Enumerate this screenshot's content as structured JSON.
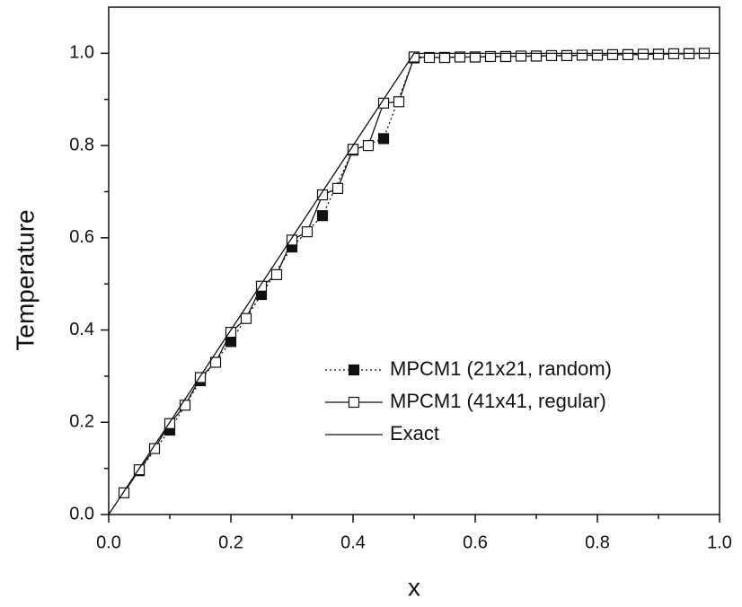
{
  "chart_data": {
    "type": "line",
    "xlabel": "x",
    "ylabel": "Temperature",
    "xlim": [
      0,
      1.0
    ],
    "ylim": [
      0,
      1.1
    ],
    "xticks": [
      {
        "value": 0,
        "label": "0.0"
      },
      0.2,
      0.4,
      0.6,
      0.8,
      {
        "value": 1.0,
        "label": "1.0"
      }
    ],
    "yticks": [
      {
        "value": 0,
        "label": "0.0"
      },
      0.2,
      0.4,
      0.6,
      0.8,
      {
        "value": 1.0,
        "label": "1.0"
      }
    ],
    "xminorticks": [
      0.1,
      0.3,
      0.5,
      0.7,
      0.9
    ],
    "yminorticks": [
      0.1,
      0.3,
      0.5,
      0.7,
      0.9
    ],
    "grid": false,
    "legend": "lower right",
    "series": [
      {
        "name": "MPCM1 (21x21, random)",
        "color": "#111111",
        "dash": "dotted",
        "marker": "square-filled",
        "x": [
          0.05,
          0.1,
          0.15,
          0.2,
          0.25,
          0.3,
          0.35,
          0.4,
          0.45,
          0.5,
          0.55,
          0.6,
          0.65,
          0.7,
          0.75,
          0.8,
          0.85,
          0.9,
          0.95
        ],
        "values": [
          0.095,
          0.183,
          0.29,
          0.375,
          0.477,
          0.58,
          0.648,
          0.79,
          0.815,
          0.99,
          0.991,
          0.992,
          0.993,
          0.994,
          0.995,
          0.996,
          0.997,
          0.998,
          0.999
        ]
      },
      {
        "name": "MPCM1 (41x41, regular)",
        "color": "#111111",
        "dash": "solid",
        "marker": "square-open",
        "x": [
          0.025,
          0.05,
          0.075,
          0.1,
          0.125,
          0.15,
          0.175,
          0.2,
          0.225,
          0.25,
          0.275,
          0.3,
          0.325,
          0.35,
          0.375,
          0.4,
          0.425,
          0.45,
          0.475,
          0.5,
          0.525,
          0.55,
          0.575,
          0.6,
          0.625,
          0.65,
          0.675,
          0.7,
          0.725,
          0.75,
          0.775,
          0.8,
          0.825,
          0.85,
          0.875,
          0.9,
          0.925,
          0.95,
          0.975
        ],
        "values": [
          0.047,
          0.097,
          0.143,
          0.197,
          0.237,
          0.297,
          0.33,
          0.395,
          0.425,
          0.495,
          0.52,
          0.595,
          0.613,
          0.693,
          0.707,
          0.792,
          0.8,
          0.892,
          0.895,
          0.992,
          0.991,
          0.991,
          0.992,
          0.992,
          0.993,
          0.993,
          0.994,
          0.994,
          0.995,
          0.995,
          0.996,
          0.996,
          0.997,
          0.997,
          0.998,
          0.998,
          0.999,
          0.999,
          1.0
        ]
      },
      {
        "name": "Exact",
        "color": "#111111",
        "dash": "solid",
        "marker": "none",
        "x": [
          0,
          0.5,
          1.0
        ],
        "values": [
          0,
          1.0,
          1.0
        ]
      }
    ]
  }
}
